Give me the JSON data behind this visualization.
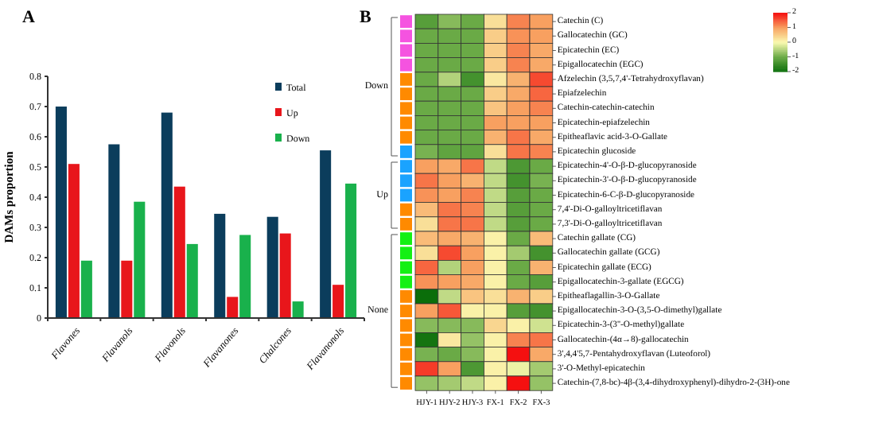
{
  "chart_data": [
    {
      "type": "bar",
      "title": "A",
      "ylabel": "DAMs proportion",
      "categories": [
        "Flavones",
        "Flavanols",
        "Flavonols",
        "Flavanones",
        "Chalcones",
        "Flavanonols"
      ],
      "series": [
        {
          "name": "Total",
          "color": "#0b3d5c",
          "values": [
            0.7,
            0.575,
            0.68,
            0.345,
            0.335,
            0.555
          ]
        },
        {
          "name": "Up",
          "color": "#e8161b",
          "values": [
            0.51,
            0.19,
            0.435,
            0.07,
            0.28,
            0.11
          ]
        },
        {
          "name": "Down",
          "color": "#19b14c",
          "values": [
            0.19,
            0.385,
            0.245,
            0.275,
            0.055,
            0.445
          ]
        }
      ],
      "ylim": [
        0,
        0.8
      ],
      "yticks": [
        {
          "value": 0,
          "label": "0"
        },
        0.1,
        0.2,
        0.3,
        0.4,
        0.5,
        0.6,
        0.7,
        0.8
      ],
      "legend": "top right"
    },
    {
      "type": "heatmap",
      "title": "B",
      "categories": [
        "HJY-1",
        "HJY-2",
        "HJY-3",
        "FX-1",
        "FX-2",
        "FX-3"
      ],
      "y_categories": [
        "Catechin (C)",
        "Gallocatechin (GC)",
        "Epicatechin (EC)",
        "Epigallocatechin (EGC)",
        "Afzelechin (3,5,7,4'-Tetrahydroxyflavan)",
        "Epiafzelechin",
        "Catechin-catechin-catechin",
        "Epicatechin-epiafzelechin",
        "Epitheaflavic acid-3-O-Gallate",
        "Epicatechin glucoside",
        "Epicatechin-4'-O-β-D-glucopyranoside",
        "Epicatechin-3'-O-β-D-glucopyranoside",
        "Epicatechin-6-C-β-D-glucopyranoside",
        "7,4'-Di-O-galloyltricetiflavan",
        "7,3'-Di-O-galloyltricetiflavan",
        "Catechin gallate (CG)",
        "Gallocatechin gallate (GCG)",
        "Epicatechin gallate (ECG)",
        "Epigallocatechin-3-gallate (EGCG)",
        "Epitheaflagallin-3-O-Gallate",
        "Epigallocatechin-3-O-(3,5-O-dimethyl)gallate",
        "Epicatechin-3-(3''-O-methyl)gallate",
        "Gallocatechin-(4α→8)-gallocatechin",
        "3',4,4'5,7-Pentahydroxyflavan (Luteoforol)",
        "3'-O-Methyl-epicatechin",
        "Catechin-(7,8-bc)-4β-(3,4-dihydroxyphenyl)-dihydro-2-(3H)-one"
      ],
      "cells": [
        [
          -1.2,
          -0.8,
          -1.0,
          0.3,
          1.2,
          1.0
        ],
        [
          -1.0,
          -1.0,
          -1.0,
          0.5,
          1.1,
          1.0
        ],
        [
          -1.0,
          -1.0,
          -1.0,
          0.5,
          1.2,
          0.9
        ],
        [
          -1.0,
          -1.0,
          -1.0,
          0.5,
          1.2,
          0.9
        ],
        [
          -1.0,
          -0.5,
          -1.4,
          0.2,
          0.8,
          1.6
        ],
        [
          -1.0,
          -1.0,
          -1.0,
          0.5,
          0.9,
          1.4
        ],
        [
          -1.0,
          -1.0,
          -1.0,
          0.6,
          1.0,
          1.2
        ],
        [
          -1.0,
          -1.0,
          -1.0,
          1.0,
          1.0,
          1.0
        ],
        [
          -1.0,
          -1.0,
          -1.0,
          0.8,
          1.3,
          0.9
        ],
        [
          -0.9,
          -1.1,
          -1.1,
          0.3,
          1.3,
          1.2
        ],
        [
          1.0,
          0.9,
          1.3,
          -0.4,
          -1.3,
          -1.0
        ],
        [
          1.3,
          1.0,
          0.8,
          -0.4,
          -1.4,
          -0.9
        ],
        [
          1.1,
          1.0,
          1.2,
          -0.4,
          -1.2,
          -1.0
        ],
        [
          0.7,
          1.3,
          1.2,
          -0.4,
          -1.2,
          -1.0
        ],
        [
          0.3,
          1.3,
          1.3,
          -0.4,
          -1.2,
          -1.0
        ],
        [
          0.7,
          0.9,
          0.8,
          0.1,
          -1.0,
          0.7
        ],
        [
          0.3,
          1.6,
          1.0,
          0.1,
          -0.6,
          -1.4
        ],
        [
          1.4,
          -0.5,
          1.0,
          0.1,
          -1.0,
          0.8
        ],
        [
          1.1,
          1.0,
          0.9,
          0.1,
          -1.0,
          -1.2
        ],
        [
          -2.0,
          -0.4,
          0.6,
          0.3,
          0.8,
          0.5
        ],
        [
          1.0,
          1.5,
          0.1,
          0.1,
          -1.2,
          -1.4
        ],
        [
          -0.8,
          -0.8,
          -0.8,
          0.4,
          0.1,
          -0.3
        ],
        [
          -1.9,
          0.2,
          -0.7,
          0.1,
          1.2,
          1.3
        ],
        [
          -0.9,
          -1.0,
          -0.8,
          0.1,
          2.0,
          0.9
        ],
        [
          1.7,
          1.0,
          -1.3,
          0.1,
          -0.1,
          -0.6
        ],
        [
          -0.7,
          -0.6,
          -0.4,
          0.1,
          2.0,
          -0.7
        ]
      ],
      "clim": [
        -2,
        2
      ],
      "cticks": [
        {
          "value": 2,
          "label": "2"
        },
        {
          "value": 1,
          "label": "1"
        },
        {
          "value": 0,
          "label": "0"
        },
        {
          "value": -1,
          "label": "-1"
        },
        {
          "value": -2,
          "label": "-2"
        }
      ],
      "annotations": [
        "Down",
        "Up",
        "None"
      ]
    }
  ]
}
